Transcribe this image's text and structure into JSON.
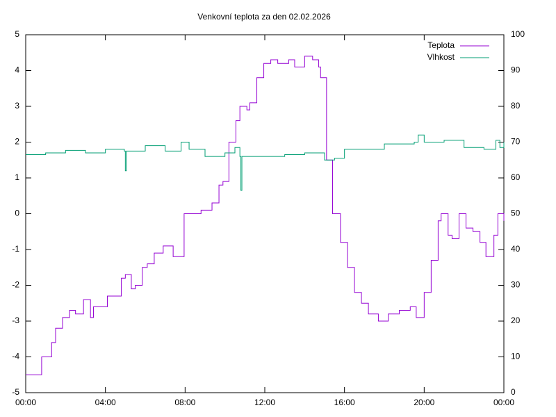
{
  "chart_data": {
    "type": "line",
    "title": "Venkovní teplota za den 02.02.2026",
    "xlim": [
      0,
      24
    ],
    "xticks": [
      {
        "value": 0,
        "label": "00:00"
      },
      {
        "value": 4,
        "label": "04:00"
      },
      {
        "value": 8,
        "label": "08:00"
      },
      {
        "value": 12,
        "label": "12:00"
      },
      {
        "value": 16,
        "label": "16:00"
      },
      {
        "value": 20,
        "label": "20:00"
      },
      {
        "value": 24,
        "label": "00:00"
      }
    ],
    "ylim": [
      -5,
      5
    ],
    "yticks": [
      -5,
      -4,
      -3,
      -2,
      -1,
      0,
      1,
      2,
      3,
      4,
      5
    ],
    "y2lim": [
      0,
      100
    ],
    "y2ticks": [
      0,
      10,
      20,
      30,
      40,
      50,
      60,
      70,
      80,
      90,
      100
    ],
    "grid": false,
    "legend": "top-right",
    "series": [
      {
        "name": "Teplota",
        "color": "#9400d3",
        "x": [
          0,
          0.8,
          1.3,
          1.5,
          1.85,
          2.2,
          2.5,
          2.9,
          3.25,
          3.4,
          3.9,
          4.1,
          4.5,
          4.8,
          5,
          5.3,
          5.5,
          5.85,
          6.1,
          6.45,
          6.9,
          7.25,
          7.4,
          7.95,
          8.3,
          8.8,
          9.2,
          9.35,
          9.7,
          9.9,
          10.2,
          10.55,
          10.75,
          11.1,
          11.25,
          11.6,
          11.95,
          12.3,
          12.65,
          13.2,
          13.5,
          14,
          14.4,
          14.7,
          14.8,
          15.1,
          15.4,
          15.8,
          16.15,
          16.5,
          16.85,
          17.2,
          17.7,
          18.2,
          18.75,
          19.3,
          19.6,
          20,
          20.35,
          20.7,
          20.85,
          21.2,
          21.4,
          21.75,
          22.1,
          22.45,
          22.8,
          23.1,
          23.5,
          23.7,
          24
        ],
        "values": [
          -4.5,
          -4.0,
          -3.6,
          -3.2,
          -2.9,
          -2.7,
          -2.8,
          -2.4,
          -2.9,
          -2.6,
          -2.6,
          -2.3,
          -2.3,
          -1.8,
          -1.7,
          -2.1,
          -2.0,
          -1.5,
          -1.4,
          -1.1,
          -0.9,
          -0.9,
          -1.2,
          0,
          0,
          0.1,
          0.1,
          0.3,
          0.8,
          0.9,
          2.0,
          2.6,
          3.0,
          2.9,
          3.1,
          3.8,
          4.2,
          4.3,
          4.2,
          4.3,
          4.1,
          4.4,
          4.3,
          4.1,
          3.8,
          1.5,
          0,
          -0.8,
          -1.5,
          -2.2,
          -2.5,
          -2.8,
          -3.0,
          -2.8,
          -2.7,
          -2.6,
          -2.9,
          -2.2,
          -1.3,
          -0.2,
          0,
          -0.6,
          -0.7,
          0,
          -0.4,
          -0.5,
          -0.8,
          -1.2,
          -0.6,
          0,
          -0.2
        ]
      },
      {
        "name": "Vlhkost",
        "color": "#009e73",
        "axis": "y2",
        "x": [
          0,
          1,
          2,
          3,
          4,
          4.95,
          5.0,
          5.05,
          6,
          7,
          7.8,
          8.2,
          9,
          10,
          10.5,
          10.75,
          10.8,
          10.85,
          12,
          13,
          14,
          15,
          15.5,
          16,
          18,
          19.5,
          19.7,
          20,
          21,
          22,
          23,
          23.6,
          23.8,
          24
        ],
        "values": [
          66.5,
          67,
          67.7,
          67,
          68,
          67.5,
          62,
          67.5,
          69,
          67.5,
          70,
          68,
          66,
          67,
          68.5,
          66,
          56.5,
          66,
          66,
          66.5,
          67,
          65,
          65.5,
          68,
          69.5,
          70,
          72,
          70,
          70.5,
          68.5,
          68,
          70.5,
          68.5,
          70
        ]
      }
    ]
  }
}
